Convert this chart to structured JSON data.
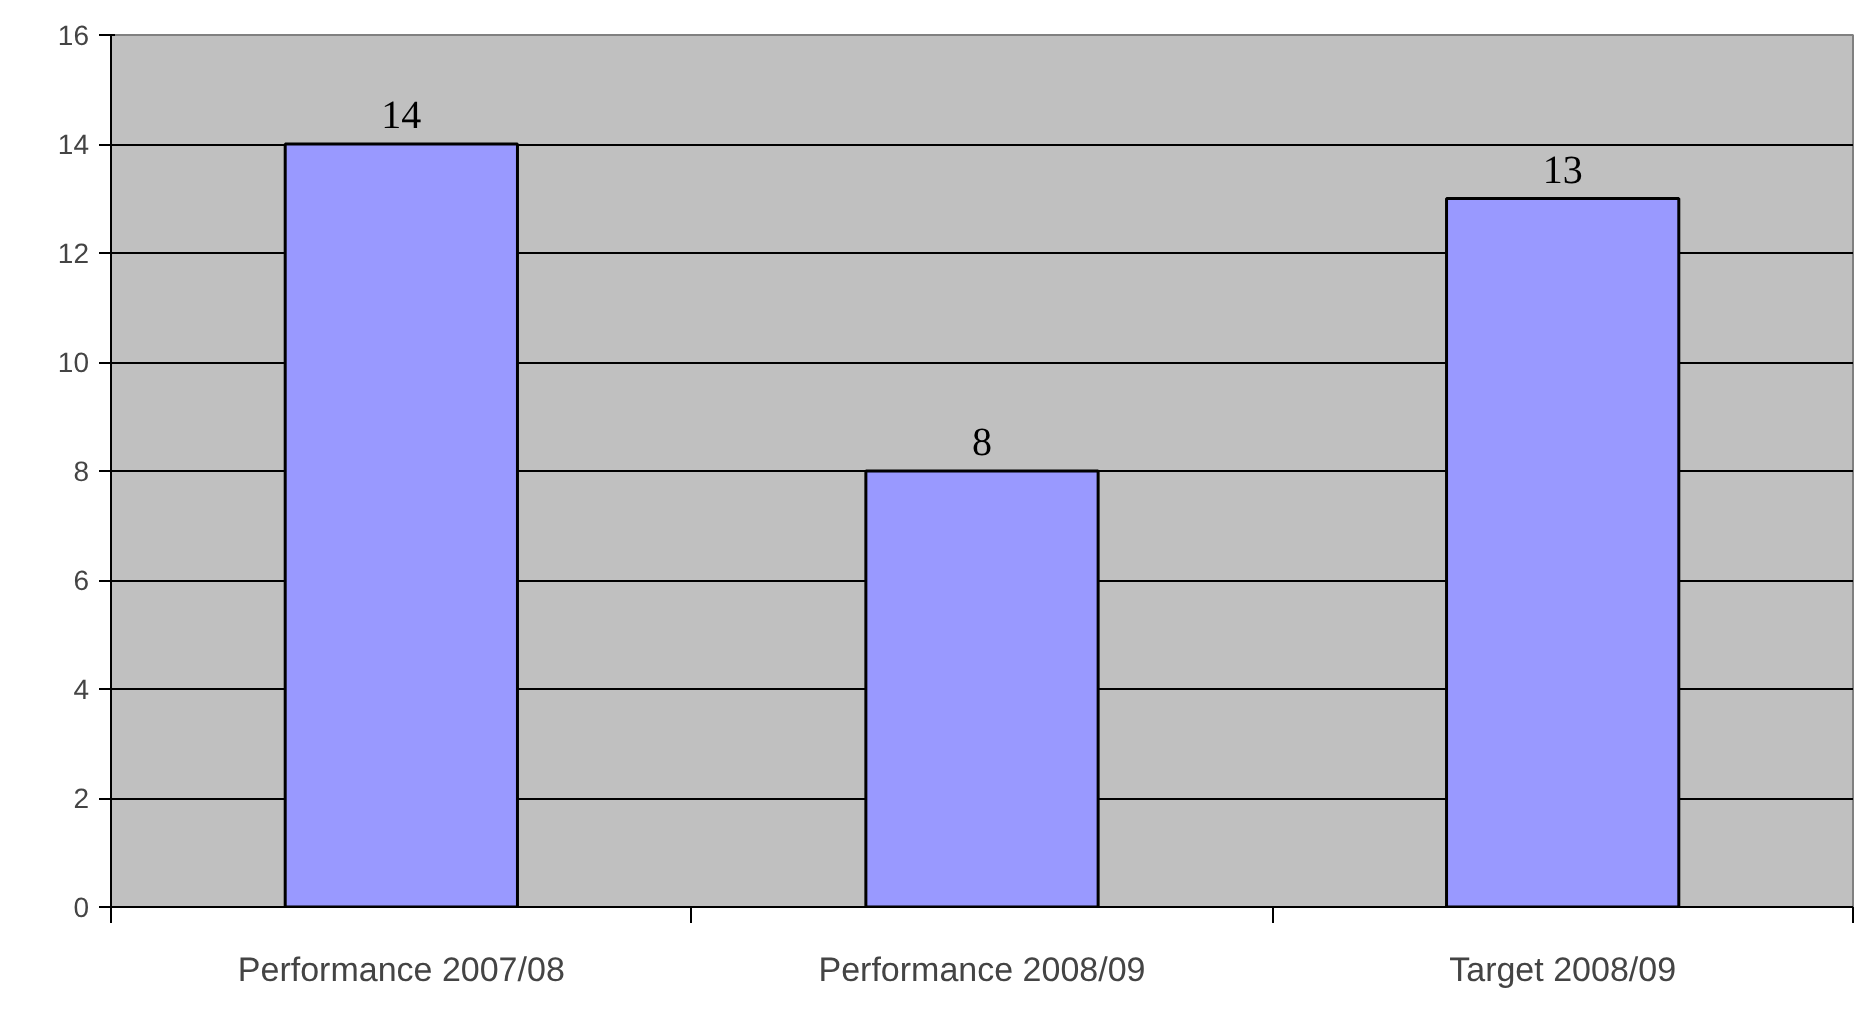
{
  "chart_data": {
    "type": "bar",
    "categories": [
      "Performance 2007/08",
      "Performance 2008/09",
      "Target 2008/09"
    ],
    "values": [
      14,
      8,
      13
    ],
    "color": "#9999ff",
    "ylim": [
      0,
      16
    ],
    "yticks": [
      0,
      2,
      4,
      6,
      8,
      10,
      12,
      14,
      16
    ],
    "grid": "y",
    "data_labels": true
  }
}
